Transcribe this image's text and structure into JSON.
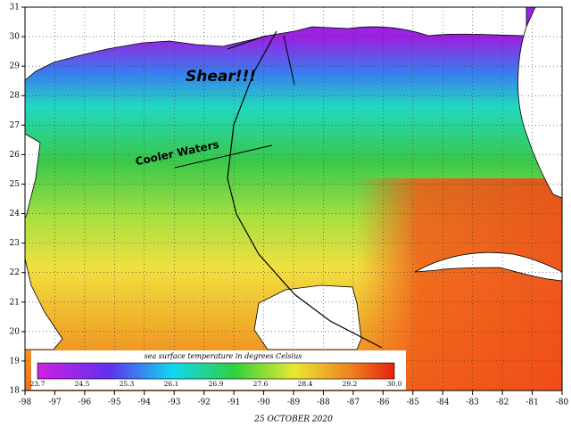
{
  "map": {
    "date": "25 OCTOBER 2020",
    "annotations": {
      "shear": "Shear!!!",
      "cooler": "Cooler Waters"
    },
    "lat_labels": [
      "31",
      "30",
      "29",
      "28",
      "27",
      "26",
      "25",
      "24",
      "23",
      "22",
      "21",
      "20",
      "19",
      "18"
    ],
    "lon_labels": [
      "-98",
      "-97",
      "-96",
      "-95",
      "-94",
      "-93",
      "-92",
      "-91",
      "-90",
      "-89",
      "-88",
      "-87",
      "-86",
      "-85",
      "-84",
      "-83",
      "-82",
      "-81",
      "-80"
    ],
    "colorbar": {
      "title": "sea surface temperature in degrees Celsius",
      "labels": [
        "23.7",
        "24.5",
        "25.3",
        "26.1",
        "26.9",
        "27.6",
        "28.4",
        "29.2",
        "30.0"
      ]
    }
  }
}
